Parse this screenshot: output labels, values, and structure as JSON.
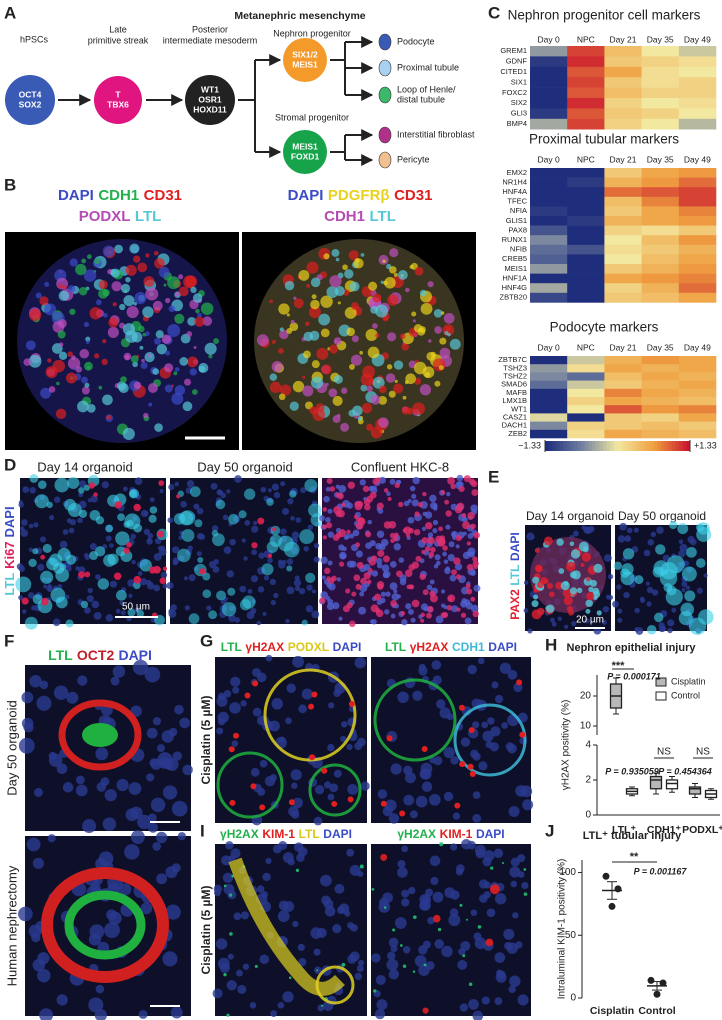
{
  "panel_labels": [
    "A",
    "B",
    "C",
    "D",
    "E",
    "F",
    "G",
    "H",
    "I",
    "J"
  ],
  "panel_a": {
    "header": "Metanephric mesenchyme",
    "stages": [
      [
        "hPSCs"
      ],
      [
        "Late",
        "primitive streak"
      ],
      [
        "Posterior",
        "intermediate mesoderm"
      ],
      [
        "Nephron progenitor"
      ],
      [
        "Stromal progenitor"
      ]
    ],
    "nodes": [
      {
        "lines": [
          "OCT4",
          "SOX2"
        ],
        "color": "#3a5bb5"
      },
      {
        "lines": [
          "T",
          "TBX6"
        ],
        "color": "#e0157f"
      },
      {
        "lines": [
          "WT1",
          "OSR1",
          "HOXD11"
        ],
        "color": "#222222"
      },
      {
        "lines": [
          "SIX1/2",
          "MEIS1"
        ],
        "color": "#f39a2a"
      },
      {
        "lines": [
          "MEIS1",
          "FOXD1"
        ],
        "color": "#17a34a"
      }
    ],
    "cell_types": [
      [
        "Podocyte"
      ],
      [
        "Proximal tubule"
      ],
      [
        "Loop of Henle/",
        "distal tubule"
      ],
      [
        "Interstitial fibroblast"
      ],
      [
        "Pericyte"
      ]
    ]
  },
  "panel_b": {
    "left": [
      [
        {
          "text": "DAPI",
          "color": "#3b4bc8"
        },
        {
          "text": "CDH1",
          "color": "#22b14c"
        },
        {
          "text": "CD31",
          "color": "#e02020"
        }
      ],
      [
        {
          "text": "PODXL",
          "color": "#b44db4"
        },
        {
          "text": "LTL",
          "color": "#55c8d8"
        }
      ]
    ],
    "right": [
      [
        {
          "text": "DAPI",
          "color": "#3b4bc8"
        },
        {
          "text": "PDGFRβ",
          "color": "#e8d21d"
        },
        {
          "text": "CD31",
          "color": "#e02020"
        }
      ],
      [
        {
          "text": "CDH1",
          "color": "#b44db4"
        },
        {
          "text": "LTL",
          "color": "#55c8d8"
        }
      ]
    ]
  },
  "panel_c": {
    "columns": [
      "Day 0",
      "NPC",
      "Day 21",
      "Day 35",
      "Day 49"
    ],
    "colors": [
      "#1b2a7a",
      "#6f7ea0",
      "#f2e8a0",
      "#f0a040",
      "#c8102e"
    ],
    "range": [
      {
        "value": -1.33,
        "label": "−1.33"
      },
      {
        "value": 1.33,
        "label": "+1.33"
      }
    ],
    "heatmaps": [
      {
        "title": "Nephron progenitor cell markers",
        "genes": [
          "GREM1",
          "GDNF",
          "CITED1",
          "SIX1",
          "FOXC2",
          "SIX2",
          "GLI3",
          "BMP4"
        ],
        "values": [
          [
            -0.5,
            1.1,
            0.4,
            0.0,
            -0.2
          ],
          [
            -1.2,
            1.2,
            0.3,
            0.2,
            0.1
          ],
          [
            -1.3,
            1.0,
            0.6,
            0.1,
            0.0
          ],
          [
            -1.3,
            1.1,
            0.3,
            0.1,
            0.2
          ],
          [
            -1.3,
            1.0,
            0.4,
            0.2,
            0.2
          ],
          [
            -1.3,
            1.2,
            0.2,
            0.0,
            0.1
          ],
          [
            -1.2,
            1.0,
            0.3,
            0.2,
            0.0
          ],
          [
            -0.4,
            1.1,
            0.2,
            0.0,
            -0.3
          ]
        ]
      },
      {
        "title": "Proximal tubular markers",
        "genes": [
          "EMX2",
          "NR1H4",
          "HNF4A",
          "TFEC",
          "NFIA",
          "GLIS1",
          "PAX8",
          "RUNX1",
          "NFIB",
          "CREB5",
          "MEIS1",
          "HNF1A",
          "HNF4G",
          "ZBTB20"
        ],
        "values": [
          [
            -1.3,
            -1.3,
            0.3,
            0.6,
            0.7
          ],
          [
            -1.3,
            -1.2,
            0.5,
            0.7,
            0.9
          ],
          [
            -1.3,
            -1.3,
            0.9,
            1.0,
            1.1
          ],
          [
            -1.3,
            -1.3,
            0.4,
            0.8,
            1.1
          ],
          [
            -1.2,
            -1.3,
            0.3,
            0.6,
            0.8
          ],
          [
            -1.3,
            -1.2,
            0.5,
            0.6,
            0.7
          ],
          [
            -1.0,
            -1.3,
            0.2,
            0.1,
            0.3
          ],
          [
            -0.6,
            -1.3,
            0.0,
            0.4,
            0.7
          ],
          [
            -0.8,
            -1.0,
            0.1,
            0.3,
            0.5
          ],
          [
            -0.9,
            -1.3,
            0.0,
            0.4,
            0.6
          ],
          [
            -0.5,
            -1.3,
            0.3,
            0.5,
            0.7
          ],
          [
            -1.3,
            -1.3,
            0.6,
            0.7,
            0.8
          ],
          [
            -0.4,
            -1.3,
            0.2,
            0.5,
            0.9
          ],
          [
            -1.1,
            -1.3,
            0.3,
            0.4,
            0.6
          ]
        ]
      },
      {
        "title": "Podocyte markers",
        "genes": [
          "ZBTB7C",
          "TSHZ3",
          "TSHZ2",
          "SMAD6",
          "MAFB",
          "LMX1B",
          "WT1",
          "CASZ1",
          "DACH1",
          "ZEB2"
        ],
        "values": [
          [
            -1.3,
            -0.2,
            0.5,
            0.7,
            0.6
          ],
          [
            -0.5,
            0.1,
            0.6,
            0.5,
            0.6
          ],
          [
            -0.6,
            -0.8,
            0.4,
            0.6,
            0.5
          ],
          [
            -0.8,
            -0.2,
            0.3,
            0.5,
            0.6
          ],
          [
            -1.3,
            0.0,
            0.8,
            0.6,
            0.5
          ],
          [
            -1.3,
            0.2,
            0.6,
            0.5,
            0.4
          ],
          [
            -1.3,
            0.0,
            1.0,
            0.7,
            0.8
          ],
          [
            -0.1,
            -1.3,
            0.3,
            0.2,
            0.6
          ],
          [
            -0.6,
            0.2,
            0.3,
            0.4,
            0.3
          ],
          [
            -1.3,
            0.1,
            0.6,
            0.5,
            0.4
          ]
        ]
      }
    ]
  },
  "panel_d": {
    "titles": [
      "Day 14 organoid",
      "Day 50 organoid",
      "Confluent HKC-8"
    ],
    "stain": [
      {
        "text": "LTL",
        "color": "#55c8d8"
      },
      {
        "text": "Ki67",
        "color": "#e0205a"
      },
      {
        "text": "DAPI",
        "color": "#3b4bc8"
      }
    ],
    "scale": "50 µm"
  },
  "panel_e": {
    "titles": [
      "Day 14 organoid",
      "Day 50 organoid"
    ],
    "stain": [
      {
        "text": "PAX2",
        "color": "#e02030"
      },
      {
        "text": "LTL",
        "color": "#55c8d8"
      },
      {
        "text": "DAPI",
        "color": "#3b4bc8"
      }
    ],
    "scale": "20 µm"
  },
  "panel_f": {
    "stain": [
      {
        "text": "LTL",
        "color": "#22b14c"
      },
      {
        "text": "OCT2",
        "color": "#c0202a"
      },
      {
        "text": "DAPI",
        "color": "#3b4bc8"
      }
    ],
    "rows": [
      "Day 50 organoid",
      "Human nephrectomy"
    ]
  },
  "panel_g": {
    "stains": [
      [
        {
          "text": "LTL",
          "color": "#22b14c"
        },
        {
          "text": "γH2AX",
          "color": "#e02020"
        },
        {
          "text": "PODXL",
          "color": "#d8c81a"
        },
        {
          "text": "DAPI",
          "color": "#3b4bc8"
        }
      ],
      [
        {
          "text": "LTL",
          "color": "#22b14c"
        },
        {
          "text": "γH2AX",
          "color": "#e02020"
        },
        {
          "text": "CDH1",
          "color": "#40b8d8"
        },
        {
          "text": "DAPI",
          "color": "#3b4bc8"
        }
      ]
    ],
    "side": "Cisplatin (5 µM)"
  },
  "panel_h": {
    "type": "box",
    "title": "Nephron epithelial injury",
    "y_label": "γH2AX positivity (%)",
    "categories": [
      "LTL⁺",
      "CDH1⁺",
      "PODXL⁺"
    ],
    "ylim": [
      0,
      4
    ],
    "yticks": [
      0,
      2,
      4
    ],
    "ylim_upper": [
      7,
      27
    ],
    "yticks_upper": [
      10,
      20
    ],
    "series": [
      {
        "name": "Cisplatin",
        "fill": "#b8b8b8",
        "min": [
          14,
          1.2,
          1.0
        ],
        "q1": [
          16,
          1.5,
          1.2
        ],
        "median": [
          20,
          2.0,
          1.5
        ],
        "q3": [
          24,
          2.2,
          1.6
        ],
        "max": [
          26,
          2.4,
          1.8
        ]
      },
      {
        "name": "Control",
        "fill": "#ffffff",
        "min": [
          1.1,
          1.3,
          0.9
        ],
        "q1": [
          1.2,
          1.5,
          1.0
        ],
        "median": [
          1.35,
          1.8,
          1.2
        ],
        "q3": [
          1.5,
          2.0,
          1.4
        ],
        "max": [
          1.6,
          2.2,
          1.5
        ]
      }
    ],
    "significance": [
      "***",
      "NS",
      "NS"
    ],
    "p_values": [
      "P = 0.000171",
      "P = 0.935059",
      "P = 0.454364"
    ]
  },
  "panel_i": {
    "stains": [
      [
        {
          "text": "γH2AX",
          "color": "#22b14c"
        },
        {
          "text": "KIM-1",
          "color": "#e02020"
        },
        {
          "text": "LTL",
          "color": "#d8c81a"
        },
        {
          "text": "DAPI",
          "color": "#3b4bc8"
        }
      ],
      [
        {
          "text": "γH2AX",
          "color": "#22b14c"
        },
        {
          "text": "KIM-1",
          "color": "#e02020"
        },
        {
          "text": "DAPI",
          "color": "#3b4bc8"
        }
      ]
    ],
    "side": "Cisplatin (5 µM)"
  },
  "panel_j": {
    "type": "dot",
    "title": "LTL⁺ tubular injury",
    "y_label": "Intraluminal KIM-1 positivity (%)",
    "categories": [
      "Cisplatin",
      "Control"
    ],
    "points": [
      [
        97,
        87,
        73
      ],
      [
        14,
        12,
        3
      ]
    ],
    "means": [
      85.7,
      9.7
    ],
    "sem": [
      7,
      3.4
    ],
    "ylim": [
      0,
      110
    ],
    "yticks": [
      0,
      50,
      100
    ],
    "significance": "**",
    "p_value": "P = 0.001167"
  }
}
